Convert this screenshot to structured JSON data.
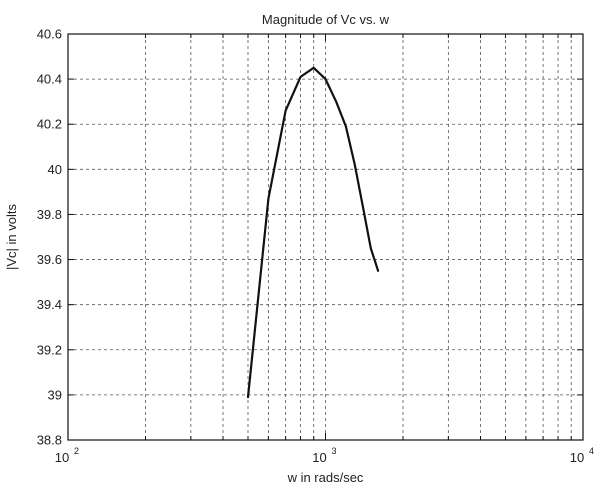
{
  "chart_data": {
    "type": "line",
    "title": "Magnitude of Vc vs. w",
    "xlabel": "w in rads/sec",
    "ylabel": "|Vc| in volts",
    "xscale": "log",
    "xlim": [
      100,
      10000
    ],
    "ylim": [
      38.8,
      40.6
    ],
    "grid": true,
    "x_ticks": [
      {
        "value": 100,
        "base": "10",
        "exp": "2"
      },
      {
        "value": 1000,
        "base": "10",
        "exp": "3"
      },
      {
        "value": 10000,
        "base": "10",
        "exp": "4"
      }
    ],
    "y_ticks": [
      {
        "value": 38.8,
        "label": "38.8"
      },
      {
        "value": 39.0,
        "label": "39"
      },
      {
        "value": 39.2,
        "label": "39.2"
      },
      {
        "value": 39.4,
        "label": "39.4"
      },
      {
        "value": 39.6,
        "label": "39.6"
      },
      {
        "value": 39.8,
        "label": "39.8"
      },
      {
        "value": 40.0,
        "label": "40"
      },
      {
        "value": 40.2,
        "label": "40.2"
      },
      {
        "value": 40.4,
        "label": "40.4"
      },
      {
        "value": 40.6,
        "label": "40.6"
      }
    ],
    "series": [
      {
        "color": "#111111",
        "x": [
          500,
          600,
          700,
          800,
          900,
          1000,
          1100,
          1200,
          1300,
          1400,
          1500,
          1600
        ],
        "y": [
          38.99,
          39.87,
          40.26,
          40.41,
          40.45,
          40.4,
          40.3,
          40.19,
          40.02,
          39.83,
          39.65,
          39.55
        ]
      }
    ]
  }
}
